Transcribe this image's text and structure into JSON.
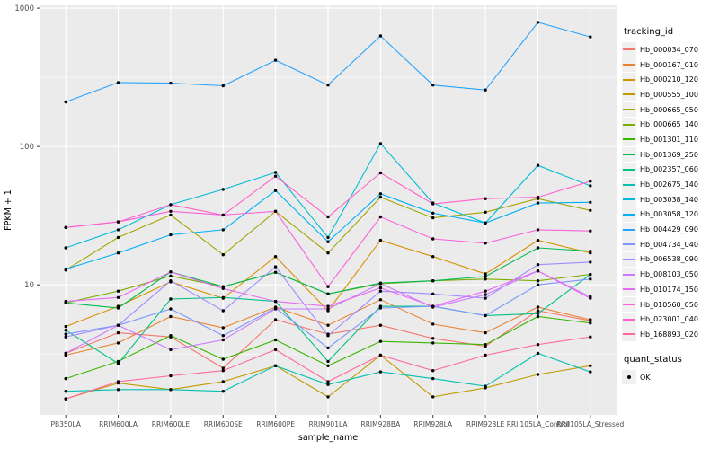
{
  "chart_data": {
    "type": "line",
    "title": "",
    "xlabel": "sample_name",
    "ylabel": "FPKM + 1",
    "y_scale": "log10",
    "y_ticks": [
      10,
      100,
      1000
    ],
    "y_tick_labels": [
      "10",
      "100",
      "1000"
    ],
    "ylim_log": [
      0.06,
      3.02
    ],
    "grid": "on",
    "panel_bg": "#EBEBEB",
    "grid_color": "#FFFFFF",
    "point_color": "#000000",
    "legend_position": "right",
    "categories": [
      "PB350LA",
      "RRIM600LA",
      "RRIM600LE",
      "RRIM600SE",
      "RRIM600PE",
      "RRIM901LA",
      "RRIM928BA",
      "RRIM928LA",
      "RRIM928LE",
      "RRII105LA_Control",
      "RRII105LA_Stressed"
    ],
    "series": [
      {
        "name": "Hb_000034_070",
        "color": "#F8766D",
        "values": [
          3.2,
          4.5,
          4.2,
          2.5,
          5.6,
          4.4,
          5.1,
          4.1,
          3.6,
          6.5,
          5.5
        ]
      },
      {
        "name": "Hb_000167_010",
        "color": "#EA8331",
        "values": [
          3.1,
          3.8,
          5.9,
          4.9,
          6.9,
          5.1,
          7.8,
          5.2,
          4.5,
          6.9,
          5.6
        ]
      },
      {
        "name": "Hb_000210_120",
        "color": "#D89000",
        "values": [
          5.0,
          7.0,
          10.5,
          8.0,
          16.0,
          6.5,
          21.0,
          16.0,
          12.0,
          21.0,
          17.0
        ]
      },
      {
        "name": "Hb_000555_100",
        "color": "#C09B00",
        "values": [
          1.5,
          1.95,
          1.75,
          2.0,
          2.6,
          1.55,
          3.1,
          1.55,
          1.8,
          2.25,
          2.6
        ]
      },
      {
        "name": "Hb_000665_050",
        "color": "#A3A500",
        "values": [
          12.8,
          22,
          32,
          16.5,
          34,
          17,
          43,
          30.5,
          33.5,
          42,
          34.5
        ]
      },
      {
        "name": "Hb_000665_140",
        "color": "#7CAE00",
        "values": [
          7.4,
          9.0,
          11.6,
          9.7,
          12.3,
          8.6,
          10.2,
          10.7,
          11.0,
          10.7,
          11.9
        ]
      },
      {
        "name": "Hb_001301_110",
        "color": "#39B600",
        "values": [
          2.1,
          2.8,
          4.3,
          2.9,
          4.0,
          2.6,
          3.9,
          3.8,
          3.7,
          5.9,
          5.3
        ]
      },
      {
        "name": "Hb_001369_250",
        "color": "#00BB4E",
        "values": [
          7.4,
          6.8,
          12.4,
          9.7,
          12.3,
          8.6,
          10.3,
          10.7,
          11.5,
          18.5,
          17.5
        ]
      },
      {
        "name": "Hb_002357_060",
        "color": "#00C087",
        "values": [
          4.7,
          2.7,
          7.9,
          8.1,
          7.6,
          2.8,
          7.0,
          7.0,
          6.0,
          6.2,
          11.9
        ]
      },
      {
        "name": "Hb_002675_140",
        "color": "#00C0B2",
        "values": [
          1.7,
          1.75,
          1.75,
          1.7,
          2.6,
          1.9,
          2.35,
          2.1,
          1.85,
          3.2,
          2.35
        ]
      },
      {
        "name": "Hb_003038_140",
        "color": "#00BCD8",
        "values": [
          18.5,
          25,
          38,
          49,
          65,
          22,
          105,
          39,
          28,
          73,
          52
        ]
      },
      {
        "name": "Hb_003058_120",
        "color": "#00B0F6",
        "values": [
          13,
          17,
          23,
          25,
          48,
          20.5,
          45.5,
          33,
          28,
          39,
          39.5
        ]
      },
      {
        "name": "Hb_004429_090",
        "color": "#29A3FF",
        "values": [
          210,
          290,
          287,
          275,
          420,
          278,
          630,
          278,
          256,
          790,
          620
        ]
      },
      {
        "name": "Hb_004734_040",
        "color": "#7E96FF",
        "values": [
          4.4,
          5.1,
          6.7,
          4.3,
          6.8,
          3.5,
          6.8,
          7.0,
          6.0,
          10.0,
          11.0
        ]
      },
      {
        "name": "Hb_006538_090",
        "color": "#9F8CFF",
        "values": [
          4.2,
          5.1,
          10.7,
          6.5,
          13.5,
          4.3,
          9.0,
          8.6,
          8.0,
          14.0,
          14.6
        ]
      },
      {
        "name": "Hb_008103_050",
        "color": "#CD79FF",
        "values": [
          3.2,
          5.1,
          3.4,
          4.0,
          6.7,
          6.7,
          10.2,
          6.9,
          8.5,
          12.6,
          8.2
        ]
      },
      {
        "name": "Hb_010174_150",
        "color": "#E76BF3",
        "values": [
          7.6,
          8.1,
          12.4,
          9.4,
          7.6,
          7.0,
          9.5,
          7.0,
          9.0,
          12.6,
          8.0
        ]
      },
      {
        "name": "Hb_010560_050",
        "color": "#FA62DB",
        "values": [
          26,
          28.5,
          34,
          32,
          34,
          9.7,
          31,
          21.5,
          20,
          25,
          24.5
        ]
      },
      {
        "name": "Hb_023001_040",
        "color": "#FF61C9",
        "values": [
          26,
          28.5,
          38,
          32,
          61,
          31,
          64.5,
          38.5,
          42,
          43,
          56
        ]
      },
      {
        "name": "Hb_168893_020",
        "color": "#FF689F",
        "values": [
          1.5,
          2.0,
          2.2,
          2.4,
          3.4,
          2.0,
          3.1,
          2.4,
          3.1,
          3.7,
          4.2
        ]
      }
    ],
    "legend_title": "tracking_id",
    "quant_legend": {
      "title": "quant_status",
      "items": [
        "OK"
      ]
    }
  }
}
